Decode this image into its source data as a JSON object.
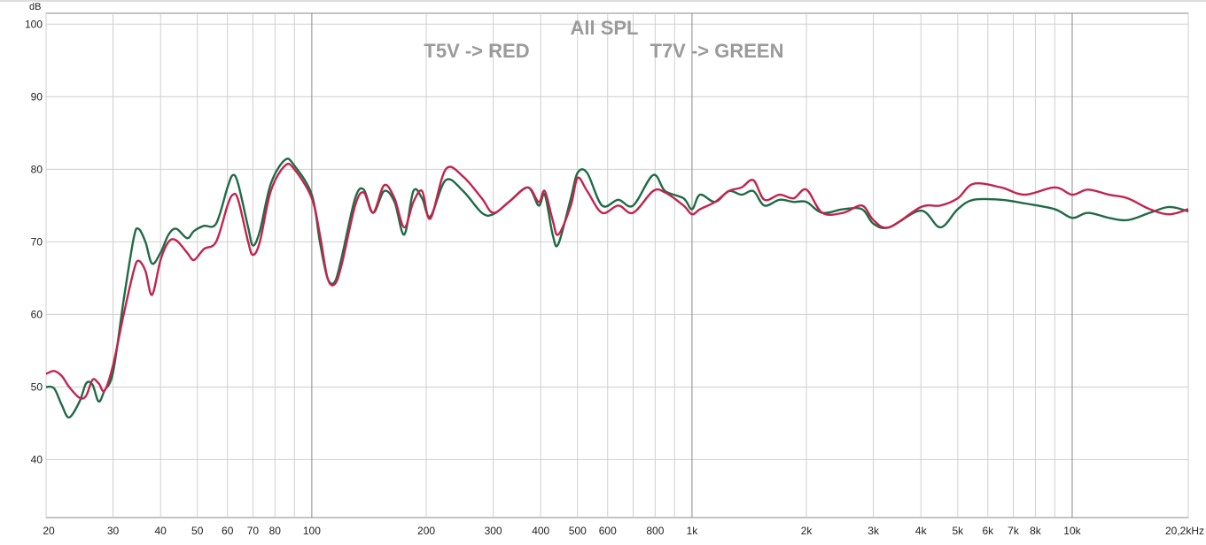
{
  "chart_data": {
    "type": "line",
    "title": "All SPL",
    "annotations": [
      "T5V -> RED",
      "T7V -> GREEN"
    ],
    "y_label": "dB",
    "log_x": true,
    "grid": true,
    "xlim": [
      20,
      20200
    ],
    "ylim": [
      32,
      101.5
    ],
    "yticks": [
      40,
      50,
      60,
      70,
      80,
      90,
      100
    ],
    "xticks": [
      20,
      30,
      40,
      50,
      60,
      70,
      80,
      100,
      200,
      300,
      400,
      500,
      600,
      800,
      {
        "value": 1000,
        "label": "1k"
      },
      {
        "value": 2000,
        "label": "2k"
      },
      {
        "value": 3000,
        "label": "3k"
      },
      {
        "value": 4000,
        "label": "4k"
      },
      {
        "value": 5000,
        "label": "5k"
      },
      {
        "value": 6000,
        "label": "6k"
      },
      {
        "value": 7000,
        "label": "7k"
      },
      {
        "value": 8000,
        "label": "8k"
      },
      {
        "value": 10000,
        "label": "10k"
      },
      {
        "value": 20200,
        "label": "20,2kHz"
      }
    ],
    "x_minor_grid": [
      90,
      700,
      900,
      9000
    ],
    "x_major_grid": [
      100,
      1000,
      10000
    ],
    "x": [
      20,
      21,
      22,
      23,
      24.5,
      25.5,
      26.5,
      27.5,
      28.5,
      30,
      32,
      34,
      35,
      36.5,
      38,
      40,
      42,
      44,
      47,
      49,
      52,
      56,
      60,
      62,
      64,
      68,
      70,
      73,
      78,
      85,
      90,
      100,
      105,
      110,
      115,
      120,
      130,
      137,
      145,
      155,
      165,
      175,
      185,
      195,
      205,
      225,
      250,
      280,
      300,
      330,
      370,
      395,
      410,
      430,
      445,
      480,
      500,
      530,
      580,
      640,
      700,
      790,
      850,
      950,
      1000,
      1050,
      1150,
      1250,
      1350,
      1450,
      1550,
      1700,
      1850,
      2000,
      2200,
      2500,
      2800,
      3000,
      3300,
      4000,
      4500,
      5000,
      5500,
      6500,
      7500,
      9000,
      10000,
      11000,
      12500,
      14000,
      16000,
      18000,
      20200
    ],
    "series": [
      {
        "color": "#1f6b48",
        "values": [
          50,
          49.8,
          47.5,
          45.8,
          48,
          50.5,
          50.3,
          48,
          49.5,
          52,
          62,
          70.5,
          71.8,
          70,
          67,
          68.5,
          71,
          71.8,
          70.5,
          71.5,
          72.2,
          72.5,
          77.5,
          79.2,
          78,
          72,
          69.5,
          71.5,
          78,
          81.3,
          80.5,
          76.5,
          70,
          65,
          64.5,
          68,
          76,
          77.2,
          74,
          77,
          75.5,
          71,
          77,
          76,
          73.5,
          78.5,
          77,
          74,
          73.8,
          75.5,
          77.5,
          75,
          76.5,
          71,
          69.7,
          76,
          79.5,
          79.5,
          75,
          75.8,
          75,
          79.2,
          77,
          76,
          74.5,
          76.5,
          75.5,
          77,
          76.5,
          77,
          75,
          75.8,
          75.5,
          75.5,
          74,
          74.5,
          74.5,
          72.5,
          72,
          74.3,
          72,
          74.5,
          75.8,
          75.8,
          75.3,
          74.5,
          73.3,
          74,
          73.3,
          73,
          74,
          74.8,
          74.2
        ]
      },
      {
        "color": "#c2244f",
        "values": [
          51.8,
          52.2,
          51.5,
          50,
          48.5,
          48.8,
          51,
          50.5,
          49.5,
          53,
          60,
          66,
          67.4,
          66,
          62.7,
          67.5,
          70,
          70.2,
          68.5,
          67.5,
          69,
          70,
          75,
          76.5,
          75.8,
          70,
          68.2,
          70,
          77,
          80.5,
          80,
          76,
          71,
          65,
          64.2,
          67,
          75,
          76.8,
          74,
          77.8,
          76,
          72,
          75.5,
          77,
          73.2,
          80,
          79,
          76,
          74,
          75.5,
          77.5,
          75.5,
          77,
          73,
          71,
          75,
          78.8,
          77,
          74,
          75,
          74,
          77,
          76.8,
          75,
          73.8,
          74.5,
          75.5,
          77,
          77.5,
          78.5,
          75.8,
          76.5,
          76,
          77.2,
          74,
          74,
          75,
          73,
          72,
          74.8,
          75,
          76,
          78,
          77.5,
          76.5,
          77.5,
          76.5,
          77.2,
          76.5,
          76,
          74.5,
          73.8,
          74.5
        ]
      }
    ]
  }
}
